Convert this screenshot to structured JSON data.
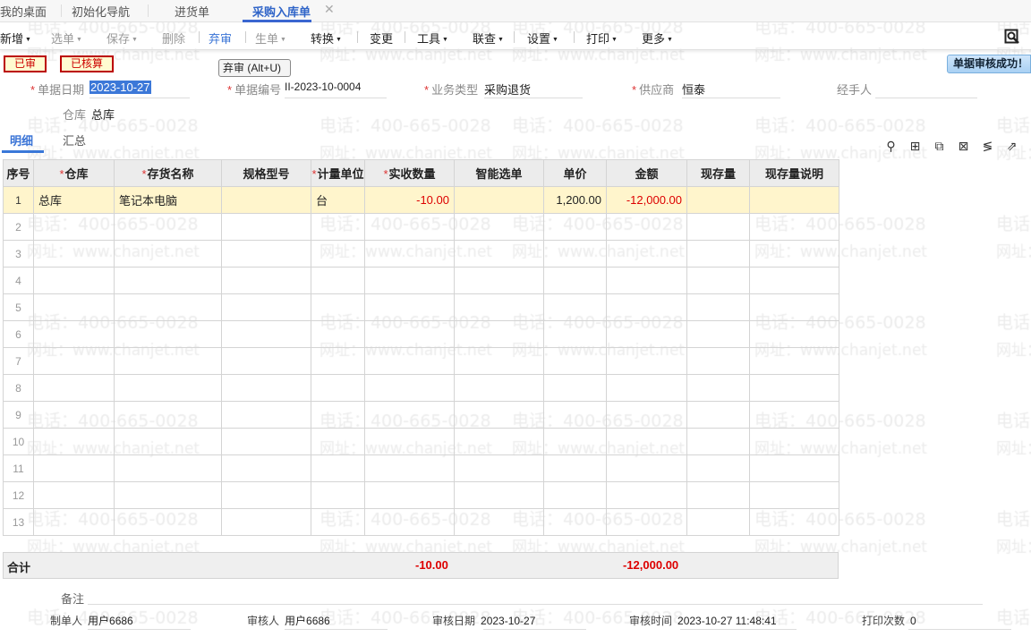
{
  "watermark": {
    "phone": "电话：400-665-0028",
    "site": "网址：www.chanjet.net"
  },
  "tabs": [
    {
      "label": "我的桌面"
    },
    {
      "label": "初始化导航"
    },
    {
      "label": "进货单"
    },
    {
      "label": "采购入库单",
      "active": true
    }
  ],
  "toolbar": {
    "items": [
      {
        "label": "新增",
        "dropdown": true,
        "state": "normal"
      },
      {
        "label": "选单",
        "dropdown": true,
        "state": "disabled"
      },
      {
        "label": "保存",
        "dropdown": true,
        "state": "disabled"
      },
      {
        "label": "删除",
        "state": "disabled"
      },
      {
        "label": "弃审",
        "state": "active"
      },
      {
        "label": "生单",
        "dropdown": true,
        "state": "disabled"
      },
      {
        "label": "转换",
        "dropdown": true,
        "state": "normal"
      },
      {
        "label": "变更",
        "state": "normal"
      },
      {
        "label": "工具",
        "dropdown": true,
        "state": "normal"
      },
      {
        "label": "联查",
        "dropdown": true,
        "state": "normal"
      },
      {
        "label": "设置",
        "dropdown": true,
        "state": "normal"
      },
      {
        "label": "打印",
        "dropdown": true,
        "state": "normal"
      },
      {
        "label": "更多",
        "dropdown": true,
        "state": "normal"
      }
    ],
    "search_icon": "preview-search-icon"
  },
  "status_badges": [
    "已审",
    "已核算"
  ],
  "tooltip": "弃审 (Alt+U)",
  "toast": "单据审核成功！",
  "header": {
    "date_label": "单据日期",
    "date": "2023-10-27",
    "number_label": "单据编号",
    "number": "II-2023-10-0004",
    "biz_type_label": "业务类型",
    "biz_type": "采购退货",
    "supplier_label": "供应商",
    "supplier": "恒泰",
    "handler_label": "经手人",
    "handler": "",
    "warehouse_label": "仓库",
    "warehouse": "总库"
  },
  "detail_tabs": [
    {
      "label": "明细",
      "active": true
    },
    {
      "label": "汇总"
    }
  ],
  "grid_icons": [
    "location-icon",
    "add-row-icon",
    "copy-row-icon",
    "delete-row-icon",
    "format-icon",
    "export-icon"
  ],
  "grid": {
    "columns": [
      {
        "label": "序号"
      },
      {
        "label": "仓库",
        "required": true
      },
      {
        "label": "存货名称",
        "required": true
      },
      {
        "label": "规格型号"
      },
      {
        "label": "计量单位",
        "required": true
      },
      {
        "label": "实收数量",
        "required": true
      },
      {
        "label": "智能选单"
      },
      {
        "label": "单价"
      },
      {
        "label": "金额"
      },
      {
        "label": "现存量"
      },
      {
        "label": "现存量说明"
      }
    ],
    "rows": [
      {
        "no": "1",
        "warehouse": "总库",
        "item": "笔记本电脑",
        "spec": "",
        "unit": "台",
        "qty": "-10.00",
        "smart": "",
        "price": "1,200.00",
        "amount": "-12,000.00",
        "stock": "",
        "stock_note": ""
      },
      {
        "no": "2"
      },
      {
        "no": "3"
      },
      {
        "no": "4"
      },
      {
        "no": "5"
      },
      {
        "no": "6"
      },
      {
        "no": "7"
      },
      {
        "no": "8"
      },
      {
        "no": "9"
      },
      {
        "no": "10"
      },
      {
        "no": "11"
      },
      {
        "no": "12"
      },
      {
        "no": "13"
      }
    ],
    "total": {
      "label": "合计",
      "qty": "-10.00",
      "amount": "-12,000.00"
    }
  },
  "footer": {
    "remark_label": "备注",
    "remark": "",
    "maker_label": "制单人",
    "maker": "用户6686",
    "auditor_label": "审核人",
    "auditor": "用户6686",
    "audit_date_label": "审核日期",
    "audit_date": "2023-10-27",
    "audit_time_label": "审核时间",
    "audit_time": "2023-10-27 11:48:41",
    "print_count_label": "打印次数",
    "print_count": "0"
  },
  "colors": {
    "accent": "#3a66d0",
    "negative": "#dd0000",
    "selected_row": "#fff5cc",
    "badge_border": "#bb0000"
  }
}
